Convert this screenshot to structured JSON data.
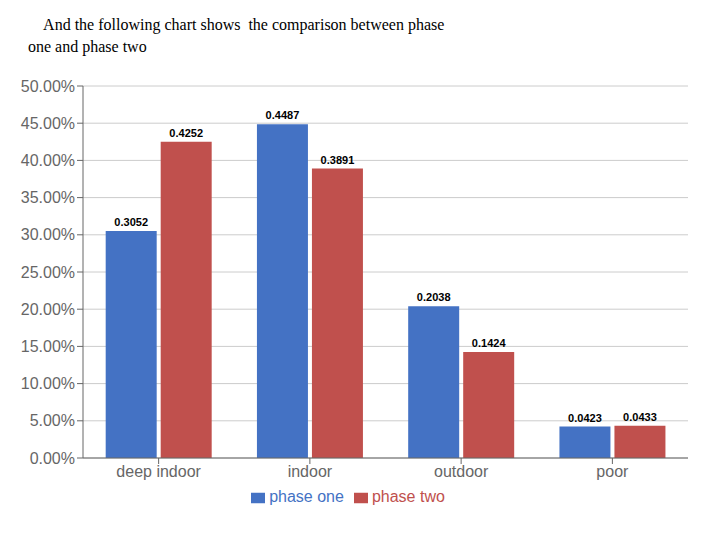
{
  "chart_data": {
    "type": "bar",
    "title": "    And the following chart shows  the comparison between phase\none and phase two",
    "categories": [
      "deep indoor",
      "indoor",
      "outdoor",
      "poor"
    ],
    "series": [
      {
        "name": "phase one",
        "color": "#4472C4",
        "values": [
          0.3052,
          0.4487,
          0.2038,
          0.0423
        ]
      },
      {
        "name": "phase two",
        "color": "#C0504D",
        "values": [
          0.4252,
          0.3891,
          0.1424,
          0.0433
        ]
      }
    ],
    "ylim": [
      0,
      0.5
    ],
    "yticks": [
      {
        "value": 0.0,
        "label": "0.00%"
      },
      {
        "value": 0.05,
        "label": "5.00%"
      },
      {
        "value": 0.1,
        "label": "10.00%"
      },
      {
        "value": 0.15,
        "label": "15.00%"
      },
      {
        "value": 0.2,
        "label": "20.00%"
      },
      {
        "value": 0.25,
        "label": "25.00%"
      },
      {
        "value": 0.3,
        "label": "30.00%"
      },
      {
        "value": 0.35,
        "label": "35.00%"
      },
      {
        "value": 0.4,
        "label": "40.00%"
      },
      {
        "value": 0.45,
        "label": "45.00%"
      },
      {
        "value": 0.5,
        "label": "50.00%"
      }
    ],
    "grid": true,
    "legend": "bottom",
    "data_labels": true
  }
}
